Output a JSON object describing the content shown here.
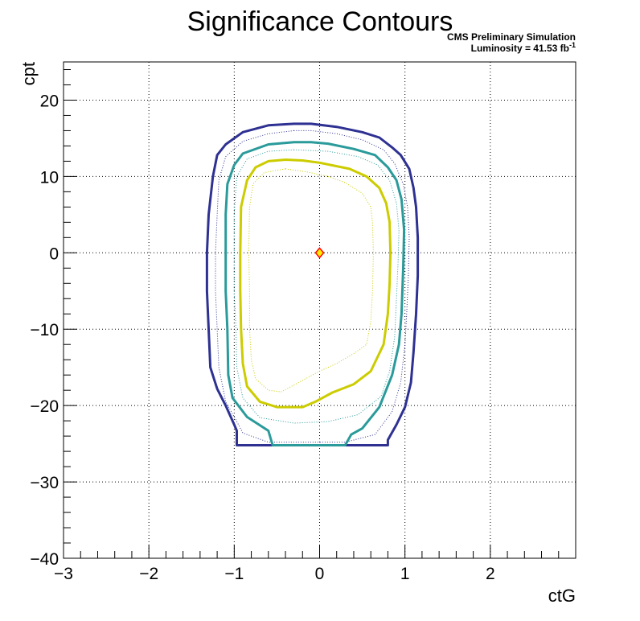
{
  "chart_data": {
    "type": "contour",
    "title": "Significance Contours",
    "annotation": {
      "line1": "CMS Preliminary Simulation",
      "line2_prefix": "Luminosity = 41.53 fb",
      "line2_superscript": "-1"
    },
    "xlabel": "ctG",
    "ylabel": "cpt",
    "xlim": [
      -3,
      3
    ],
    "ylim": [
      -40,
      25
    ],
    "xticks": [
      -3,
      -2,
      -1,
      0,
      1,
      2
    ],
    "yticks": [
      -40,
      -30,
      -20,
      -10,
      0,
      10,
      20
    ],
    "xtick_labels": [
      "−3",
      "−2",
      "−1",
      "0",
      "1",
      "2"
    ],
    "ytick_labels": [
      "−40",
      "−30",
      "−20",
      "−10",
      "0",
      "10",
      "20"
    ],
    "grid": true,
    "best_fit_point": {
      "x": 0.0,
      "y": 0.0,
      "color": "#ff0000",
      "fill": "#ffee00"
    },
    "contours": [
      {
        "style": "solid",
        "color": "#2e3192",
        "width": 3,
        "points": [
          [
            -0.3,
            16.9
          ],
          [
            -0.6,
            16.7
          ],
          [
            -0.9,
            15.8
          ],
          [
            -1.1,
            14.2
          ],
          [
            -1.2,
            12.8
          ],
          [
            -1.25,
            10
          ],
          [
            -1.3,
            5
          ],
          [
            -1.32,
            0
          ],
          [
            -1.32,
            -5
          ],
          [
            -1.3,
            -10
          ],
          [
            -1.28,
            -15
          ],
          [
            -1.2,
            -17.8
          ],
          [
            -1.1,
            -20
          ],
          [
            -1.0,
            -22.5
          ],
          [
            -0.97,
            -23.3
          ],
          [
            -0.97,
            -25.2
          ],
          [
            0.8,
            -25.2
          ],
          [
            0.8,
            -24.5
          ],
          [
            0.9,
            -22.5
          ],
          [
            1.0,
            -20.2
          ],
          [
            1.07,
            -17
          ],
          [
            1.1,
            -13
          ],
          [
            1.13,
            -8
          ],
          [
            1.15,
            -3
          ],
          [
            1.15,
            2
          ],
          [
            1.13,
            6
          ],
          [
            1.1,
            8.5
          ],
          [
            1.05,
            11
          ],
          [
            0.95,
            12.8
          ],
          [
            0.85,
            13.8
          ],
          [
            0.7,
            15.1
          ],
          [
            0.5,
            15.8
          ],
          [
            0.2,
            16.5
          ],
          [
            -0.1,
            16.9
          ],
          [
            -0.3,
            16.9
          ]
        ]
      },
      {
        "style": "dotted",
        "color": "#2e3192",
        "width": 1,
        "points": [
          [
            -0.3,
            16.0
          ],
          [
            -0.6,
            15.6
          ],
          [
            -0.9,
            14.6
          ],
          [
            -1.1,
            12.6
          ],
          [
            -1.18,
            9.5
          ],
          [
            -1.2,
            5
          ],
          [
            -1.22,
            0
          ],
          [
            -1.22,
            -5
          ],
          [
            -1.2,
            -10
          ],
          [
            -1.18,
            -15
          ],
          [
            -1.1,
            -19.5
          ],
          [
            -0.95,
            -22.5
          ],
          [
            -0.9,
            -23.6
          ],
          [
            -0.6,
            -24.8
          ],
          [
            0.3,
            -24.8
          ],
          [
            0.65,
            -23.8
          ],
          [
            0.85,
            -20.8
          ],
          [
            0.95,
            -17
          ],
          [
            1.0,
            -12
          ],
          [
            1.02,
            -8
          ],
          [
            1.04,
            -3
          ],
          [
            1.05,
            2
          ],
          [
            1.03,
            6
          ],
          [
            0.98,
            9
          ],
          [
            0.88,
            11.7
          ],
          [
            0.75,
            13.5
          ],
          [
            0.5,
            14.8
          ],
          [
            0.2,
            15.6
          ],
          [
            -0.1,
            16.0
          ],
          [
            -0.3,
            16.0
          ]
        ]
      },
      {
        "style": "solid",
        "color": "#2a9a9a",
        "width": 3,
        "points": [
          [
            -0.3,
            14.5
          ],
          [
            -0.6,
            14.2
          ],
          [
            -0.9,
            13.0
          ],
          [
            -1.0,
            11.5
          ],
          [
            -1.08,
            9
          ],
          [
            -1.1,
            5
          ],
          [
            -1.1,
            0
          ],
          [
            -1.1,
            -5
          ],
          [
            -1.08,
            -10
          ],
          [
            -1.07,
            -16
          ],
          [
            -1.02,
            -19
          ],
          [
            -0.85,
            -21.5
          ],
          [
            -0.6,
            -23.3
          ],
          [
            -0.55,
            -25.2
          ],
          [
            0.3,
            -25.2
          ],
          [
            0.37,
            -23.8
          ],
          [
            0.5,
            -23
          ],
          [
            0.7,
            -20.2
          ],
          [
            0.85,
            -16
          ],
          [
            0.93,
            -12
          ],
          [
            0.96,
            -8
          ],
          [
            0.98,
            -2
          ],
          [
            0.99,
            3
          ],
          [
            0.96,
            7
          ],
          [
            0.9,
            9.5
          ],
          [
            0.8,
            11.2
          ],
          [
            0.65,
            12.8
          ],
          [
            0.4,
            13.6
          ],
          [
            0.1,
            14.3
          ],
          [
            -0.1,
            14.5
          ],
          [
            -0.3,
            14.5
          ]
        ]
      },
      {
        "style": "dotted",
        "color": "#2a9a9a",
        "width": 1,
        "points": [
          [
            -0.3,
            13.5
          ],
          [
            -0.6,
            13.3
          ],
          [
            -0.85,
            12.3
          ],
          [
            -0.97,
            10
          ],
          [
            -1.0,
            5
          ],
          [
            -1.0,
            0
          ],
          [
            -1.0,
            -5
          ],
          [
            -0.98,
            -10
          ],
          [
            -0.97,
            -15
          ],
          [
            -0.9,
            -19
          ],
          [
            -0.7,
            -21.6
          ],
          [
            -0.3,
            -22.3
          ],
          [
            0.1,
            -22.1
          ],
          [
            0.45,
            -21.2
          ],
          [
            0.72,
            -18.8
          ],
          [
            0.82,
            -15.5
          ],
          [
            0.88,
            -11
          ],
          [
            0.9,
            -6
          ],
          [
            0.92,
            -1
          ],
          [
            0.93,
            3
          ],
          [
            0.9,
            6.5
          ],
          [
            0.82,
            9.5
          ],
          [
            0.68,
            11.5
          ],
          [
            0.45,
            12.6
          ],
          [
            0.1,
            13.3
          ],
          [
            -0.3,
            13.5
          ]
        ]
      },
      {
        "style": "solid",
        "color": "#cccc00",
        "width": 3,
        "points": [
          [
            -0.4,
            12.2
          ],
          [
            -0.6,
            12.0
          ],
          [
            -0.75,
            11.2
          ],
          [
            -0.85,
            9.5
          ],
          [
            -0.92,
            6
          ],
          [
            -0.93,
            0
          ],
          [
            -0.93,
            -5
          ],
          [
            -0.92,
            -10
          ],
          [
            -0.9,
            -14.5
          ],
          [
            -0.85,
            -17.5
          ],
          [
            -0.7,
            -19.5
          ],
          [
            -0.5,
            -20.2
          ],
          [
            -0.2,
            -20.2
          ],
          [
            -0.05,
            -19.5
          ],
          [
            0.15,
            -18.3
          ],
          [
            0.4,
            -17.2
          ],
          [
            0.6,
            -15.5
          ],
          [
            0.75,
            -12
          ],
          [
            0.8,
            -8
          ],
          [
            0.82,
            -4
          ],
          [
            0.83,
            0
          ],
          [
            0.82,
            4
          ],
          [
            0.78,
            6.5
          ],
          [
            0.7,
            8.5
          ],
          [
            0.55,
            10
          ],
          [
            0.35,
            11
          ],
          [
            0.0,
            11.8
          ],
          [
            -0.2,
            12.1
          ],
          [
            -0.4,
            12.2
          ]
        ]
      },
      {
        "style": "dotted",
        "color": "#cccc00",
        "width": 1,
        "points": [
          [
            -0.4,
            11.0
          ],
          [
            -0.65,
            10.5
          ],
          [
            -0.78,
            9
          ],
          [
            -0.82,
            6
          ],
          [
            -0.83,
            0
          ],
          [
            -0.82,
            -5
          ],
          [
            -0.82,
            -10
          ],
          [
            -0.8,
            -14
          ],
          [
            -0.75,
            -16.5
          ],
          [
            -0.6,
            -18
          ],
          [
            -0.45,
            -18.2
          ],
          [
            -0.25,
            -17
          ],
          [
            0.0,
            -15.5
          ],
          [
            0.2,
            -14.5
          ],
          [
            0.4,
            -13.2
          ],
          [
            0.55,
            -12
          ],
          [
            0.6,
            -9
          ],
          [
            0.62,
            -5
          ],
          [
            0.63,
            0
          ],
          [
            0.62,
            4
          ],
          [
            0.6,
            6
          ],
          [
            0.5,
            7.8
          ],
          [
            0.3,
            9.2
          ],
          [
            0.1,
            10
          ],
          [
            -0.15,
            10.6
          ],
          [
            -0.4,
            11.0
          ]
        ]
      }
    ]
  }
}
